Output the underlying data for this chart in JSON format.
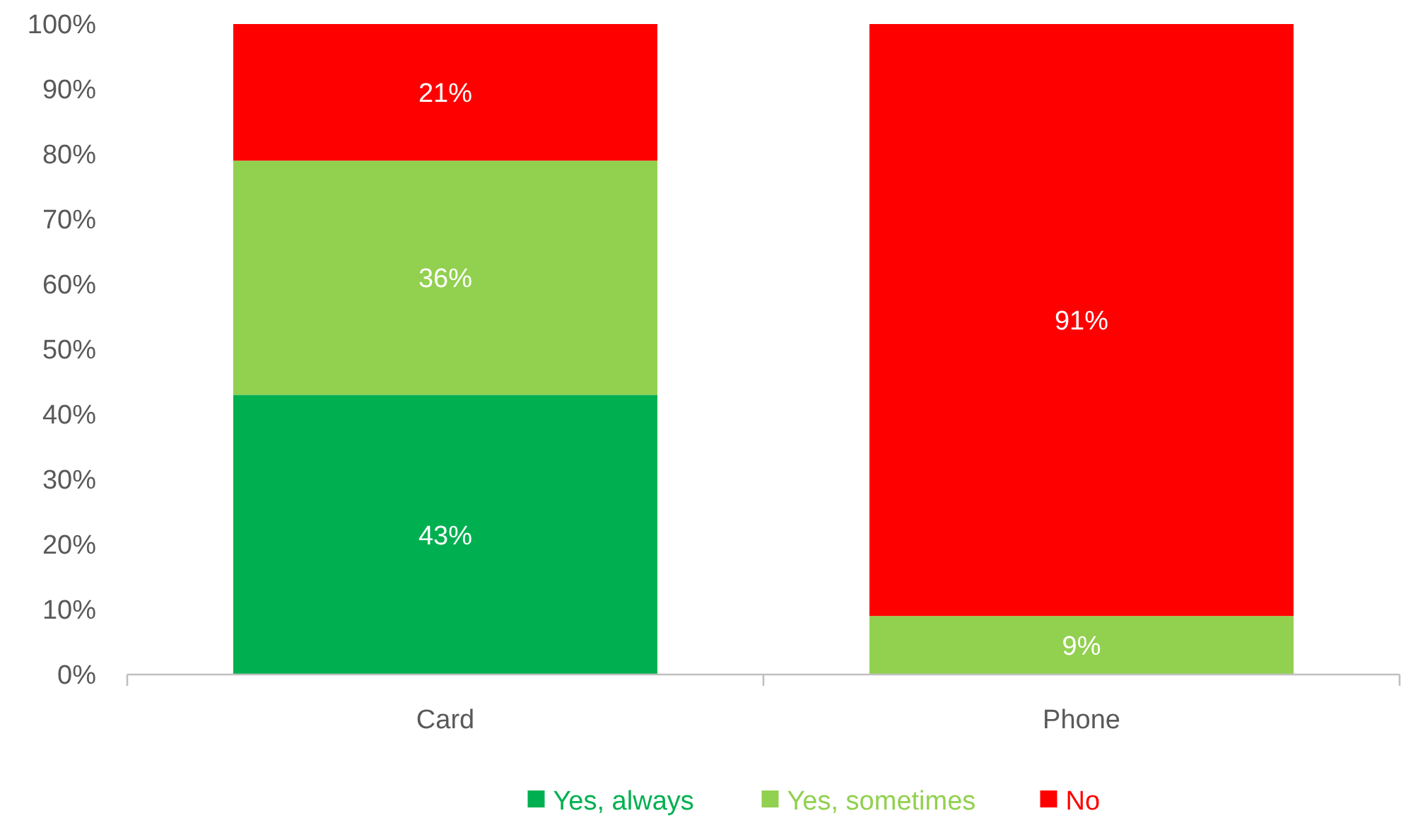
{
  "chart_data": {
    "type": "bar",
    "stacked": true,
    "categories": [
      "Card",
      "Phone"
    ],
    "series": [
      {
        "name": "Yes, always",
        "color": "#00b050",
        "values": [
          43,
          0
        ],
        "value_labels": [
          "43%",
          null
        ]
      },
      {
        "name": "Yes, sometimes",
        "color": "#92d050",
        "values": [
          36,
          9
        ],
        "value_labels": [
          "36%",
          "9%"
        ]
      },
      {
        "name": "No",
        "color": "#ff0000",
        "values": [
          21,
          91
        ],
        "value_labels": [
          "21%",
          "91%"
        ]
      }
    ],
    "ylim": [
      0,
      100
    ],
    "yticks": [
      {
        "value": 0,
        "label": "0%"
      },
      {
        "value": 10,
        "label": "10%"
      },
      {
        "value": 20,
        "label": "20%"
      },
      {
        "value": 30,
        "label": "30%"
      },
      {
        "value": 40,
        "label": "40%"
      },
      {
        "value": 50,
        "label": "50%"
      },
      {
        "value": 60,
        "label": "60%"
      },
      {
        "value": 70,
        "label": "70%"
      },
      {
        "value": 80,
        "label": "80%"
      },
      {
        "value": 90,
        "label": "90%"
      },
      {
        "value": 100,
        "label": "100%"
      }
    ],
    "grid": false,
    "legend": "bottom"
  }
}
